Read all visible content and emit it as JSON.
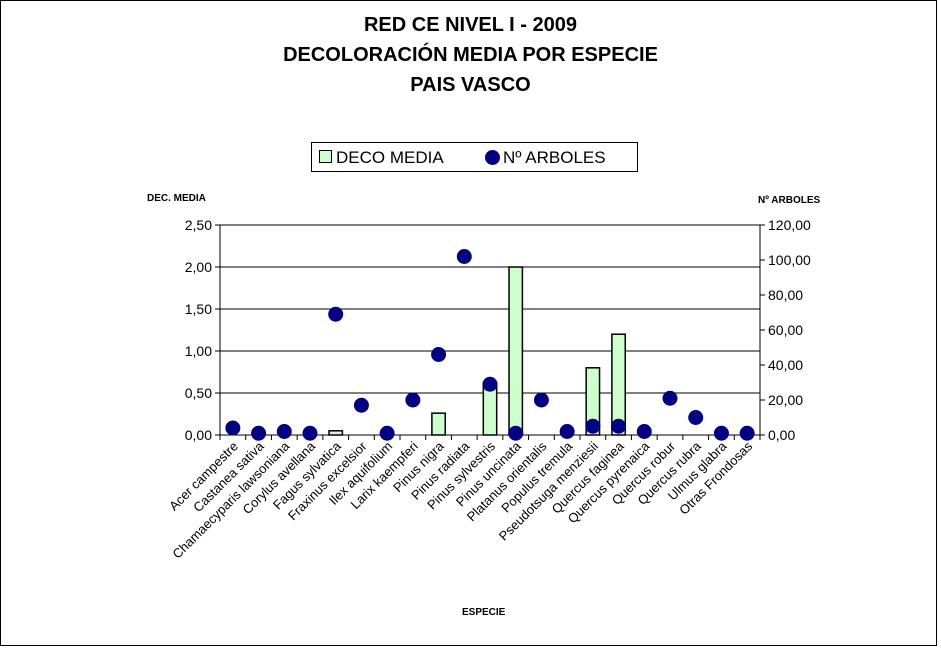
{
  "title_lines": [
    "RED CE NIVEL I - 2009",
    "DECOLORACIÓN MEDIA POR ESPECIE",
    "PAIS VASCO"
  ],
  "legend": {
    "bar_label": "DECO MEDIA",
    "point_label": "Nº ARBOLES"
  },
  "colors": {
    "bar_fill": "#ccffcc",
    "point_fill": "#000080",
    "grid": "#000000"
  },
  "chart_data": {
    "type": "bar",
    "title": "RED CE NIVEL I - 2009 DECOLORACIÓN MEDIA POR ESPECIE PAIS VASCO",
    "xlabel": "ESPECIE",
    "ylabel": "DEC. MEDIA",
    "y2label": "Nº ARBOLES",
    "ylim": [
      0,
      2.5
    ],
    "y2lim": [
      0,
      120
    ],
    "y_ticks": [
      "0,00",
      "0,50",
      "1,00",
      "1,50",
      "2,00",
      "2,50"
    ],
    "y2_ticks": [
      "0,00",
      "20,00",
      "40,00",
      "60,00",
      "80,00",
      "100,00",
      "120,00"
    ],
    "grid": true,
    "legend_position": "top-center",
    "categories": [
      "Acer campestre",
      "Castanea sativa",
      "Chamaecyparis lawsoniana",
      "Corylus avellana",
      "Fagus sylvatica",
      "Fraxinus excelsior",
      "Ilex aquifolium",
      "Larix kaempferi",
      "Pinus nigra",
      "Pinus radiata",
      "Pinus sylvestris",
      "Pinus uncinata",
      "Platanus orientalis",
      "Populus tremula",
      "Pseudotsuga menziesii",
      "Quercus faginea",
      "Quercus pyrenaica",
      "Quercus robur",
      "Quercus rubra",
      "Ulmus glabra",
      "Otras Frondosas"
    ],
    "series": [
      {
        "name": "DECO MEDIA",
        "type": "bar",
        "axis": "left",
        "values": [
          0,
          0,
          0,
          0,
          0.05,
          0,
          0,
          0,
          0.26,
          0,
          0.62,
          2.0,
          0,
          0,
          0.8,
          1.2,
          0,
          0,
          0,
          0,
          0
        ]
      },
      {
        "name": "Nº ARBOLES",
        "type": "scatter",
        "axis": "right",
        "values": [
          4,
          1,
          2,
          1,
          69,
          17,
          1,
          20,
          46,
          102,
          29,
          1,
          20,
          2,
          5,
          5,
          2,
          21,
          10,
          1,
          1
        ]
      }
    ]
  }
}
